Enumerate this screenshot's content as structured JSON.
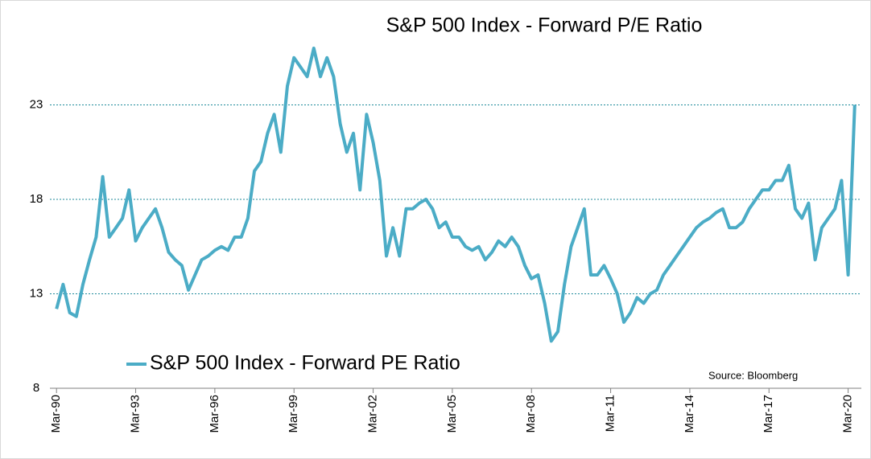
{
  "chart_data": {
    "type": "line",
    "title": "S&P 500 Index - Forward P/E Ratio",
    "annotation": "Source: Bloomberg",
    "legend": "lower left",
    "grid": true,
    "xlim": [
      "1989-12",
      "2020-09"
    ],
    "xticks": [
      {
        "value": "1990-03",
        "label": "Mar-90"
      },
      {
        "value": "1993-03",
        "label": "Mar-93"
      },
      {
        "value": "1996-03",
        "label": "Mar-96"
      },
      {
        "value": "1999-03",
        "label": "Mar-99"
      },
      {
        "value": "2002-03",
        "label": "Mar-02"
      },
      {
        "value": "2005-03",
        "label": "Mar-05"
      },
      {
        "value": "2008-03",
        "label": "Mar-08"
      },
      {
        "value": "2011-03",
        "label": "Mar-11"
      },
      {
        "value": "2014-03",
        "label": "Mar-14"
      },
      {
        "value": "2017-03",
        "label": "Mar-17"
      },
      {
        "value": "2020-03",
        "label": "Mar-20"
      }
    ],
    "ylim": [
      8,
      28
    ],
    "yticks": [
      8,
      13,
      18,
      23
    ],
    "x": [
      "1990-03",
      "1990-06",
      "1990-09",
      "1990-12",
      "1991-03",
      "1991-06",
      "1991-09",
      "1991-12",
      "1992-03",
      "1992-06",
      "1992-09",
      "1992-12",
      "1993-03",
      "1993-06",
      "1993-09",
      "1993-12",
      "1994-03",
      "1994-06",
      "1994-09",
      "1994-12",
      "1995-03",
      "1995-06",
      "1995-09",
      "1995-12",
      "1996-03",
      "1996-06",
      "1996-09",
      "1996-12",
      "1997-03",
      "1997-06",
      "1997-09",
      "1997-12",
      "1998-03",
      "1998-06",
      "1998-09",
      "1998-12",
      "1999-03",
      "1999-06",
      "1999-09",
      "1999-12",
      "2000-03",
      "2000-06",
      "2000-09",
      "2000-12",
      "2001-03",
      "2001-06",
      "2001-09",
      "2001-12",
      "2002-03",
      "2002-06",
      "2002-09",
      "2002-12",
      "2003-03",
      "2003-06",
      "2003-09",
      "2003-12",
      "2004-03",
      "2004-06",
      "2004-09",
      "2004-12",
      "2005-03",
      "2005-06",
      "2005-09",
      "2005-12",
      "2006-03",
      "2006-06",
      "2006-09",
      "2006-12",
      "2007-03",
      "2007-06",
      "2007-09",
      "2007-12",
      "2008-03",
      "2008-06",
      "2008-09",
      "2008-12",
      "2009-03",
      "2009-06",
      "2009-09",
      "2009-12",
      "2010-03",
      "2010-06",
      "2010-09",
      "2010-12",
      "2011-03",
      "2011-06",
      "2011-09",
      "2011-12",
      "2012-03",
      "2012-06",
      "2012-09",
      "2012-12",
      "2013-03",
      "2013-06",
      "2013-09",
      "2013-12",
      "2014-03",
      "2014-06",
      "2014-09",
      "2014-12",
      "2015-03",
      "2015-06",
      "2015-09",
      "2015-12",
      "2016-03",
      "2016-06",
      "2016-09",
      "2016-12",
      "2017-03",
      "2017-06",
      "2017-09",
      "2017-12",
      "2018-03",
      "2018-06",
      "2018-09",
      "2018-12",
      "2019-03",
      "2019-06",
      "2019-09",
      "2019-12",
      "2020-03",
      "2020-06"
    ],
    "series": [
      {
        "name": "S&P 500 Index - Forward PE Ratio",
        "color": "#4bacc6",
        "values": [
          12.2,
          13.5,
          12.0,
          11.8,
          13.5,
          14.8,
          16.0,
          19.2,
          16.0,
          16.5,
          17.0,
          18.5,
          15.8,
          16.5,
          17.0,
          17.5,
          16.5,
          15.2,
          14.8,
          14.5,
          13.2,
          14.0,
          14.8,
          15.0,
          15.3,
          15.5,
          15.3,
          16.0,
          16.0,
          17.0,
          19.5,
          20.0,
          21.5,
          22.5,
          20.5,
          24.0,
          25.5,
          25.0,
          24.5,
          26.0,
          24.5,
          25.5,
          24.5,
          22.0,
          20.5,
          21.5,
          18.5,
          22.5,
          21.0,
          19.0,
          15.0,
          16.5,
          15.0,
          17.5,
          17.5,
          17.8,
          18.0,
          17.5,
          16.5,
          16.8,
          16.0,
          16.0,
          15.5,
          15.3,
          15.5,
          14.8,
          15.2,
          15.8,
          15.5,
          16.0,
          15.5,
          14.5,
          13.8,
          14.0,
          12.5,
          10.5,
          11.0,
          13.5,
          15.5,
          16.5,
          17.5,
          14.0,
          14.0,
          14.5,
          13.8,
          13.0,
          11.5,
          12.0,
          12.8,
          12.5,
          13.0,
          13.2,
          14.0,
          14.5,
          15.0,
          15.5,
          16.0,
          16.5,
          16.8,
          17.0,
          17.3,
          17.5,
          16.5,
          16.5,
          16.8,
          17.5,
          18.0,
          18.5,
          18.5,
          19.0,
          19.0,
          19.8,
          17.5,
          17.0,
          17.8,
          14.8,
          16.5,
          17.0,
          17.5,
          19.0,
          14.0,
          23.0
        ]
      }
    ]
  }
}
